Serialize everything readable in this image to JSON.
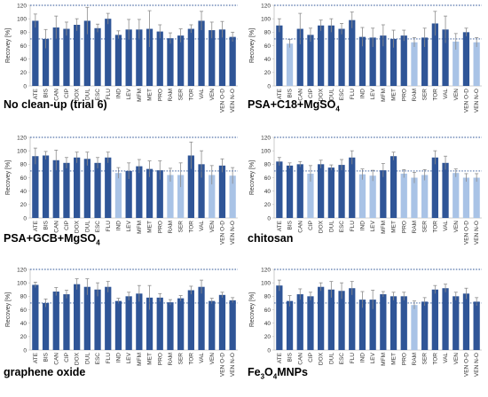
{
  "page": {
    "background": "#ffffff"
  },
  "colors": {
    "pass": "#2f5597",
    "fail": "#a9c3e6",
    "error": "#8c8c8c",
    "refline": "#2f5597",
    "axis": "#bfbfbf"
  },
  "chart_data": [
    {
      "type": "bar",
      "title_parts": [
        "No clean-up (trial 6)"
      ],
      "categories": [
        "ATE",
        "BIS",
        "CAN",
        "CIP",
        "DOX",
        "DUL",
        "ESC",
        "FLU",
        "IND",
        "LEV",
        "MFM",
        "MET",
        "PRO",
        "RAM",
        "SER",
        "TOR",
        "VAL",
        "VEN",
        "VEN O-D",
        "VEN N-O"
      ],
      "values": [
        97,
        70,
        87,
        85,
        91,
        97,
        86,
        100,
        76,
        84,
        84,
        85,
        81,
        71,
        75,
        85,
        97,
        83,
        84,
        73
      ],
      "errors": [
        10,
        14,
        17,
        10,
        9,
        20,
        6,
        8,
        6,
        15,
        15,
        27,
        10,
        8,
        10,
        6,
        14,
        12,
        12,
        7
      ],
      "fail_below_70": [
        false,
        false,
        false,
        false,
        false,
        false,
        false,
        false,
        false,
        false,
        false,
        false,
        false,
        false,
        false,
        false,
        false,
        false,
        false,
        false
      ],
      "ylabel": "Recovey [%]",
      "ylim": [
        0,
        120
      ],
      "yticks": [
        0,
        20,
        40,
        60,
        80,
        100,
        120
      ],
      "reference_lines": [
        70,
        120
      ],
      "grid": false
    },
    {
      "type": "bar",
      "title_parts": [
        "PSA+C18+MgSO",
        "4"
      ],
      "categories": [
        "ATE",
        "BIS",
        "CAN",
        "CIP",
        "DOX",
        "DUL",
        "ESC",
        "FLU",
        "IND",
        "LEV",
        "MFM",
        "MET",
        "PRO",
        "RAM",
        "SER",
        "TOR",
        "VAL",
        "VEN",
        "VEN O-D",
        "VEN N-O"
      ],
      "values": [
        90,
        63,
        85,
        76,
        90,
        90,
        85,
        98,
        73,
        72,
        75,
        70,
        75,
        65,
        72,
        93,
        84,
        66,
        80,
        65
      ],
      "errors": [
        10,
        6,
        23,
        10,
        8,
        10,
        8,
        12,
        14,
        14,
        16,
        13,
        8,
        7,
        14,
        18,
        20,
        12,
        6,
        7
      ],
      "fail_below_70": [
        false,
        true,
        false,
        false,
        false,
        false,
        false,
        false,
        false,
        false,
        false,
        false,
        false,
        true,
        false,
        false,
        false,
        true,
        false,
        true
      ],
      "ylabel": "Recovey [%]",
      "ylim": [
        0,
        120
      ],
      "yticks": [
        0,
        20,
        40,
        60,
        80,
        100,
        120
      ],
      "reference_lines": [
        70,
        120
      ],
      "grid": false
    },
    {
      "type": "bar",
      "title_parts": [
        "PSA+GCB+MgSO",
        "4"
      ],
      "categories": [
        "ATE",
        "BIS",
        "CAN",
        "CIP",
        "DOX",
        "DUL",
        "ESC",
        "FLU",
        "IND",
        "LEV",
        "MFM",
        "MET",
        "PRO",
        "RAM",
        "SER",
        "TOR",
        "VAL",
        "VEN",
        "VEN O-D",
        "VEN N-O"
      ],
      "values": [
        92,
        93,
        86,
        82,
        90,
        88,
        82,
        90,
        67,
        70,
        77,
        73,
        71,
        64,
        64,
        93,
        80,
        64,
        78,
        63
      ],
      "errors": [
        12,
        6,
        15,
        8,
        8,
        10,
        8,
        8,
        8,
        12,
        10,
        12,
        14,
        10,
        18,
        20,
        20,
        14,
        10,
        12
      ],
      "fail_below_70": [
        false,
        false,
        false,
        false,
        false,
        false,
        false,
        false,
        true,
        false,
        false,
        false,
        false,
        true,
        true,
        false,
        false,
        true,
        false,
        true
      ],
      "ylabel": "Recovey [%]",
      "ylim": [
        0,
        120
      ],
      "yticks": [
        0,
        20,
        40,
        60,
        80,
        100,
        120
      ],
      "reference_lines": [
        70,
        120
      ],
      "grid": false
    },
    {
      "type": "bar",
      "title_parts": [
        "chitosan"
      ],
      "categories": [
        "ATE",
        "BIS",
        "CAN",
        "CIP",
        "DOX",
        "DUL",
        "ESC",
        "FLU",
        "IND",
        "LEV",
        "MFM",
        "MET",
        "PRO",
        "RAM",
        "SER",
        "TOR",
        "VAL",
        "VEN",
        "VEN O-D",
        "VEN N-O"
      ],
      "values": [
        84,
        78,
        80,
        66,
        80,
        75,
        79,
        90,
        65,
        63,
        71,
        92,
        66,
        60,
        64,
        90,
        82,
        67,
        60,
        60
      ],
      "errors": [
        6,
        4,
        4,
        12,
        6,
        4,
        8,
        10,
        8,
        8,
        10,
        6,
        6,
        8,
        8,
        10,
        10,
        6,
        6,
        6
      ],
      "fail_below_70": [
        false,
        false,
        false,
        true,
        false,
        false,
        false,
        false,
        true,
        true,
        false,
        false,
        true,
        true,
        true,
        false,
        false,
        true,
        true,
        true
      ],
      "ylabel": "Recovey [%]",
      "ylim": [
        0,
        120
      ],
      "yticks": [
        0,
        20,
        40,
        60,
        80,
        100,
        120
      ],
      "reference_lines": [
        70,
        120
      ],
      "grid": false
    },
    {
      "type": "bar",
      "title_parts": [
        "graphene oxide"
      ],
      "categories": [
        "ATE",
        "BIS",
        "CAN",
        "CIP",
        "DOX",
        "DUL",
        "ESC",
        "FLU",
        "IND",
        "LEV",
        "MFM",
        "MET",
        "PRO",
        "RAM",
        "SER",
        "TOR",
        "VAL",
        "VEN",
        "VEN O-D",
        "VEN N-O"
      ],
      "values": [
        97,
        70,
        87,
        83,
        98,
        94,
        90,
        94,
        73,
        80,
        84,
        78,
        78,
        71,
        77,
        89,
        94,
        73,
        82,
        74
      ],
      "errors": [
        4,
        6,
        6,
        6,
        8,
        12,
        10,
        8,
        4,
        6,
        12,
        18,
        6,
        4,
        4,
        6,
        10,
        4,
        4,
        4
      ],
      "fail_below_70": [
        false,
        false,
        false,
        false,
        false,
        false,
        false,
        false,
        false,
        false,
        false,
        false,
        false,
        false,
        false,
        false,
        false,
        false,
        false,
        false
      ],
      "ylabel": "Recovey [%]",
      "ylim": [
        0,
        120
      ],
      "yticks": [
        0,
        20,
        40,
        60,
        80,
        100,
        120
      ],
      "reference_lines": [
        70,
        120
      ],
      "grid": false
    },
    {
      "type": "bar",
      "title_parts": [
        "Fe",
        "3",
        "O",
        "4",
        "MNPs"
      ],
      "categories": [
        "ATE",
        "BIS",
        "CAN",
        "CIP",
        "DOX",
        "DUL",
        "ESC",
        "FLU",
        "IND",
        "LEV",
        "MFM",
        "MET",
        "PRO",
        "RAM",
        "SER",
        "TOR",
        "VAL",
        "VEN",
        "VEN O-D",
        "VEN N-O"
      ],
      "values": [
        96,
        73,
        83,
        80,
        94,
        90,
        88,
        92,
        75,
        75,
        83,
        80,
        80,
        67,
        72,
        90,
        92,
        80,
        84,
        72
      ],
      "errors": [
        8,
        8,
        8,
        6,
        6,
        12,
        12,
        10,
        12,
        14,
        4,
        6,
        6,
        6,
        6,
        6,
        6,
        6,
        8,
        6
      ],
      "fail_below_70": [
        false,
        false,
        false,
        false,
        false,
        false,
        false,
        false,
        false,
        false,
        false,
        false,
        false,
        true,
        false,
        false,
        false,
        false,
        false,
        false
      ],
      "ylabel": "Recovey [%]",
      "ylim": [
        0,
        120
      ],
      "yticks": [
        0,
        20,
        40,
        60,
        80,
        100,
        120
      ],
      "reference_lines": [
        70,
        120
      ],
      "grid": false
    }
  ]
}
